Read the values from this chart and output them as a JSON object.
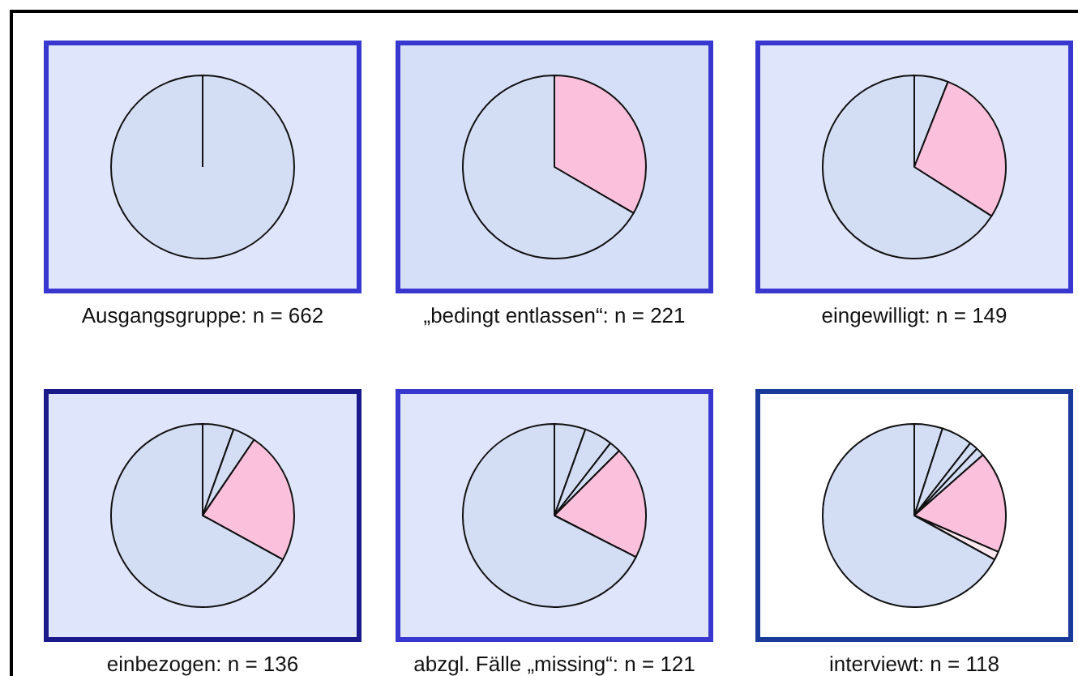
{
  "chart_data": [
    {
      "type": "pie",
      "title": "Ausgangsgruppe: n = 662",
      "categories": [
        null
      ],
      "values": [
        100
      ],
      "colors": [
        "#d3def5"
      ]
    },
    {
      "type": "pie",
      "title": "„bedingt entlassen“: n = 221",
      "categories": [
        null,
        null
      ],
      "values": [
        33.4,
        66.6
      ],
      "colors": [
        "#fbc0dc",
        "#d3def5"
      ]
    },
    {
      "type": "pie",
      "title": "eingewilligt: n = 149",
      "categories": [
        null,
        null,
        null
      ],
      "values": [
        6,
        28,
        66
      ],
      "colors": [
        "#d3def5",
        "#fbc0dc",
        "#d3def5"
      ]
    },
    {
      "type": "pie",
      "title": "einbezogen: n = 136",
      "categories": [
        null,
        null,
        null,
        null
      ],
      "values": [
        5.5,
        4,
        23.5,
        67
      ],
      "colors": [
        "#d3def5",
        "#d3def5",
        "#fbc0dc",
        "#d3def5"
      ]
    },
    {
      "type": "pie",
      "title": "abzgl. Fälle „missing“: n = 121",
      "categories": [
        null,
        null,
        null,
        null,
        null
      ],
      "values": [
        5.5,
        5,
        2,
        20,
        67.5
      ],
      "colors": [
        "#d3def5",
        "#d3def5",
        "#d3def5",
        "#fbc0dc",
        "#d3def5"
      ]
    },
    {
      "type": "pie",
      "title": "interviewt: n = 118",
      "categories": [
        null,
        null,
        null,
        null,
        null,
        null,
        null
      ],
      "values": [
        5,
        5.5,
        1.5,
        1.5,
        18,
        1.5,
        67
      ],
      "colors": [
        "#d3def5",
        "#d3def5",
        "#d3def5",
        "#d3def5",
        "#fbc0dc",
        "#fde8f0",
        "#d3def5"
      ]
    }
  ]
}
